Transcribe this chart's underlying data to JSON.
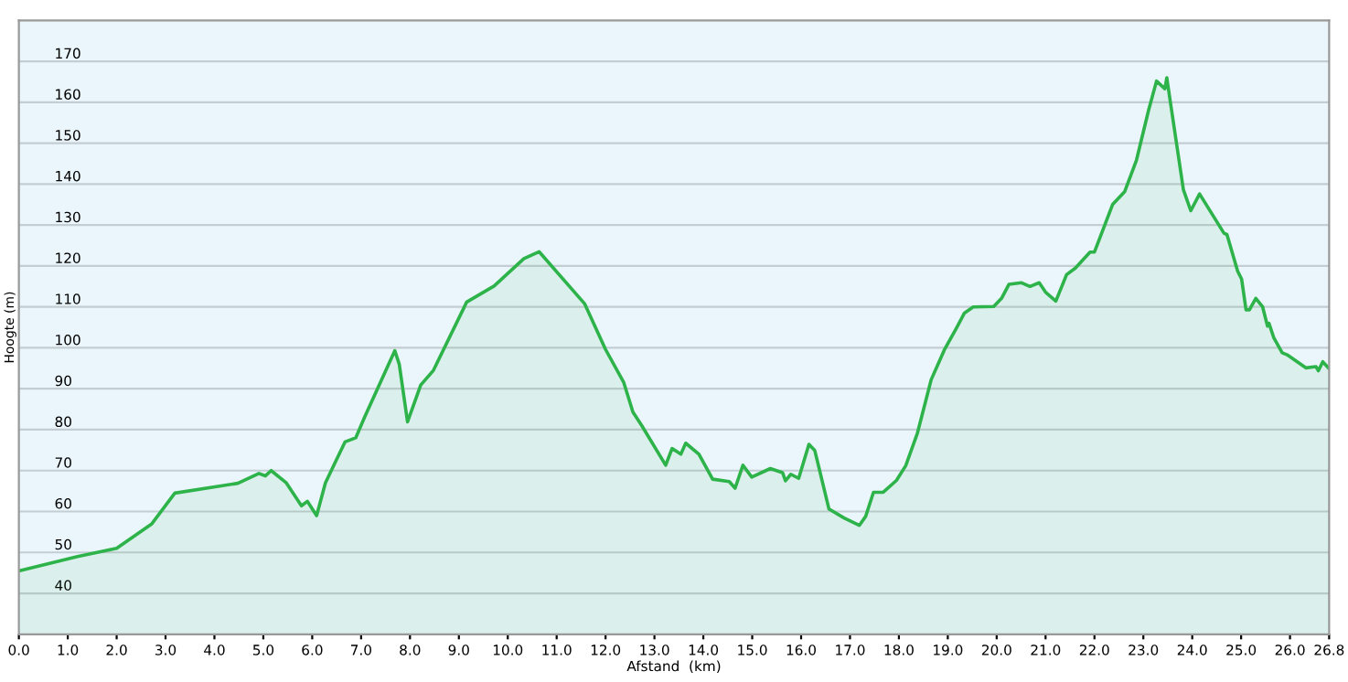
{
  "chart_data": {
    "type": "area",
    "xlabel": "Afstand  (km)",
    "ylabel": "Hoogte (m)",
    "xlim": [
      0,
      26.8
    ],
    "ylim": [
      30,
      180
    ],
    "xticks": [
      {
        "value": 0,
        "label": "0.0"
      },
      {
        "value": 1,
        "label": "1.0"
      },
      {
        "value": 2,
        "label": "2.0"
      },
      {
        "value": 3,
        "label": "3.0"
      },
      {
        "value": 4,
        "label": "4.0"
      },
      {
        "value": 5,
        "label": "5.0"
      },
      {
        "value": 6,
        "label": "6.0"
      },
      {
        "value": 7,
        "label": "7.0"
      },
      {
        "value": 8,
        "label": "8.0"
      },
      {
        "value": 9,
        "label": "9.0"
      },
      {
        "value": 10,
        "label": "10.0"
      },
      {
        "value": 11,
        "label": "11.0"
      },
      {
        "value": 12,
        "label": "12.0"
      },
      {
        "value": 13,
        "label": "13.0"
      },
      {
        "value": 14,
        "label": "14.0"
      },
      {
        "value": 15,
        "label": "15.0"
      },
      {
        "value": 16,
        "label": "16.0"
      },
      {
        "value": 17,
        "label": "17.0"
      },
      {
        "value": 18,
        "label": "18.0"
      },
      {
        "value": 19,
        "label": "19.0"
      },
      {
        "value": 20,
        "label": "20.0"
      },
      {
        "value": 21,
        "label": "21.0"
      },
      {
        "value": 22,
        "label": "22.0"
      },
      {
        "value": 23,
        "label": "23.0"
      },
      {
        "value": 24,
        "label": "24.0"
      },
      {
        "value": 25,
        "label": "25.0"
      },
      {
        "value": 26,
        "label": "26.0"
      },
      {
        "value": 26.8,
        "label": "26.8"
      }
    ],
    "yticks": [
      40,
      50,
      60,
      70,
      80,
      90,
      100,
      110,
      120,
      130,
      140,
      150,
      160,
      170
    ],
    "grid": "y",
    "series": [
      {
        "color": "#2db34a",
        "x": [
          0,
          1.2,
          2.0,
          2.72,
          3.19,
          4.48,
          4.91,
          5.04,
          5.16,
          5.47,
          5.78,
          5.9,
          6.09,
          6.27,
          6.67,
          6.89,
          7.07,
          7.69,
          7.78,
          7.95,
          8.22,
          8.48,
          9.16,
          9.72,
          10.33,
          10.64,
          11.57,
          12.0,
          12.37,
          12.56,
          12.74,
          13.23,
          13.36,
          13.54,
          13.64,
          13.91,
          14.19,
          14.53,
          14.65,
          14.81,
          14.99,
          15.37,
          15.62,
          15.68,
          15.79,
          15.95,
          16.16,
          16.28,
          16.57,
          16.88,
          17.19,
          17.32,
          17.48,
          17.68,
          17.95,
          18.14,
          18.38,
          18.66,
          18.93,
          19.18,
          19.34,
          19.52,
          19.94,
          20.1,
          20.25,
          20.51,
          20.68,
          20.87,
          21.0,
          21.21,
          21.43,
          21.61,
          21.91,
          22.0,
          22.37,
          22.62,
          22.86,
          23.11,
          23.27,
          23.44,
          23.48,
          23.54,
          23.82,
          23.97,
          24.15,
          24.65,
          24.71,
          24.93,
          25.01,
          25.1,
          25.17,
          25.3,
          25.44,
          25.54,
          25.57,
          25.67,
          25.84,
          25.94,
          26.33,
          26.53,
          26.58,
          26.67,
          26.8
        ],
        "values": [
          45.5,
          49,
          51,
          57,
          64.5,
          66.9,
          69.3,
          68.7,
          70,
          67,
          61.4,
          62.5,
          59,
          67,
          77,
          78,
          83,
          99.3,
          96,
          81.9,
          90.9,
          94.5,
          111.2,
          115.1,
          121.8,
          123.5,
          110.8,
          99.6,
          91.6,
          84.3,
          81,
          71.3,
          75.4,
          74,
          76.7,
          74,
          67.9,
          67.3,
          65.7,
          71.3,
          68.4,
          70.5,
          69.5,
          67.5,
          69.1,
          68.1,
          76.4,
          74.9,
          60.6,
          58.4,
          56.6,
          58.8,
          64.7,
          64.7,
          67.6,
          71.2,
          79.2,
          92.2,
          99.5,
          104.9,
          108.5,
          110,
          110.1,
          112.1,
          115.5,
          115.9,
          115,
          115.9,
          113.6,
          111.4,
          117.9,
          119.5,
          123.4,
          123.4,
          135,
          138.2,
          145.9,
          158.2,
          165.2,
          163.3,
          166,
          161.1,
          138.6,
          133.5,
          137.6,
          128,
          127.7,
          118.7,
          116.8,
          109.3,
          109.3,
          112.1,
          110,
          105.3,
          106,
          102.4,
          98.8,
          98.3,
          95.1,
          95.4,
          94.4,
          96.6,
          94.9
        ]
      }
    ]
  }
}
